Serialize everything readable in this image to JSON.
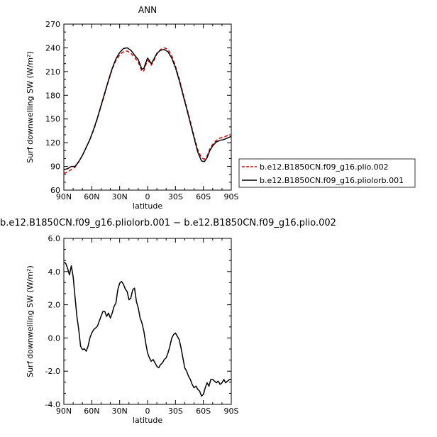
{
  "chart_data": [
    {
      "type": "line",
      "title": "ANN",
      "xlabel": "latitude",
      "ylabel": "Surf downwelling SW (W/m²)",
      "xlim": [
        90,
        -90
      ],
      "ylim": [
        60,
        270
      ],
      "x_ticks": [
        90,
        60,
        30,
        0,
        -30,
        -60,
        -90
      ],
      "x_tick_labels": [
        "90N",
        "60N",
        "30N",
        "0",
        "30S",
        "60S",
        "90S"
      ],
      "y_ticks": [
        60,
        90,
        120,
        150,
        180,
        210,
        240,
        270
      ],
      "y_tick_labels": [
        "60",
        "90",
        "120",
        "150",
        "180",
        "210",
        "240",
        "270"
      ],
      "legend_position": "right",
      "series": [
        {
          "name": "b.e12.B1850CN.f09_g16.plio.002",
          "color": "#dd0000",
          "dashed": true,
          "x": [
            90,
            86,
            82,
            78,
            74,
            70,
            66,
            62,
            58,
            54,
            50,
            46,
            42,
            38,
            34,
            30,
            26,
            22,
            18,
            14,
            10,
            6,
            4,
            2,
            0,
            -2,
            -4,
            -6,
            -10,
            -14,
            -18,
            -22,
            -26,
            -30,
            -34,
            -38,
            -42,
            -46,
            -50,
            -54,
            -58,
            -61,
            -64,
            -67,
            -70,
            -74,
            -78,
            -82,
            -86,
            -90
          ],
          "y": [
            81,
            83,
            86,
            89,
            96,
            104,
            114,
            124,
            136,
            150,
            166,
            182,
            198,
            213,
            224,
            231,
            235,
            236,
            233,
            228,
            222,
            210,
            211,
            218,
            224,
            222,
            218,
            222,
            232,
            238,
            240,
            238,
            230,
            217,
            201,
            183,
            165,
            147,
            128,
            111,
            101,
            99,
            103,
            112,
            118,
            123,
            126,
            127,
            129,
            130
          ]
        },
        {
          "name": "b.e12.B1850CN.f09_g16.pliolorb.001",
          "color": "#000000",
          "dashed": false,
          "x": [
            90,
            86,
            82,
            78,
            74,
            70,
            66,
            62,
            58,
            54,
            50,
            46,
            42,
            38,
            34,
            30,
            26,
            22,
            18,
            14,
            10,
            6,
            4,
            2,
            0,
            -2,
            -4,
            -6,
            -10,
            -14,
            -18,
            -22,
            -26,
            -30,
            -34,
            -38,
            -42,
            -46,
            -50,
            -54,
            -58,
            -61,
            -64,
            -67,
            -70,
            -74,
            -78,
            -82,
            -86,
            -90
          ],
          "y": [
            86,
            87,
            90,
            90,
            96,
            104,
            114,
            124,
            137,
            151,
            167,
            183,
            199,
            214,
            226,
            234,
            239,
            240,
            237,
            231,
            225,
            213,
            214,
            221,
            227,
            224,
            220,
            224,
            233,
            237,
            238,
            235,
            227,
            215,
            199,
            181,
            163,
            145,
            126,
            108,
            97,
            96,
            101,
            110,
            116,
            121,
            123,
            124,
            126,
            128
          ]
        }
      ]
    },
    {
      "type": "line",
      "title": "b.e12.B1850CN.f09_g16.pliolorb.001 − b.e12.B1850CN.f09_g16.plio.002",
      "xlabel": "latitude",
      "ylabel": "Surf downwelling SW (W/m²)",
      "xlim": [
        90,
        -90
      ],
      "ylim": [
        -4.0,
        6.0
      ],
      "x_ticks": [
        90,
        60,
        30,
        0,
        -30,
        -60,
        -90
      ],
      "x_tick_labels": [
        "90N",
        "60N",
        "30N",
        "0",
        "30S",
        "60S",
        "90S"
      ],
      "y_ticks": [
        -4.0,
        -2.0,
        0.0,
        2.0,
        4.0,
        6.0
      ],
      "y_tick_labels": [
        "-4.0",
        "-2.0",
        "0.0",
        "2.0",
        "4.0",
        "6.0"
      ],
      "series": [
        {
          "color": "#000000",
          "x": [
            90,
            88,
            86,
            84,
            82,
            80,
            78,
            76,
            74,
            72,
            70,
            68,
            66,
            64,
            62,
            60,
            58,
            56,
            54,
            52,
            50,
            48,
            46,
            44,
            42,
            40,
            38,
            36,
            34,
            32,
            30,
            28,
            26,
            24,
            22,
            20,
            18,
            16,
            14,
            12,
            10,
            8,
            6,
            4,
            2,
            0,
            -2,
            -4,
            -6,
            -8,
            -10,
            -12,
            -14,
            -16,
            -18,
            -20,
            -22,
            -24,
            -26,
            -28,
            -30,
            -32,
            -34,
            -36,
            -38,
            -40,
            -42,
            -44,
            -46,
            -48,
            -50,
            -52,
            -54,
            -56,
            -58,
            -60,
            -62,
            -64,
            -66,
            -68,
            -70,
            -72,
            -74,
            -76,
            -78,
            -80,
            -82,
            -84,
            -86,
            -88,
            -90
          ],
          "y": [
            4.55,
            4.5,
            4.2,
            3.8,
            4.35,
            3.7,
            2.5,
            1.3,
            0.5,
            -0.5,
            -0.7,
            -0.65,
            -0.8,
            -0.5,
            0.0,
            0.3,
            0.5,
            0.6,
            0.7,
            1.0,
            1.3,
            1.6,
            1.6,
            1.3,
            1.5,
            1.2,
            1.5,
            1.9,
            2.1,
            2.9,
            3.3,
            3.4,
            3.25,
            2.95,
            2.8,
            2.3,
            2.4,
            2.9,
            3.0,
            2.2,
            1.8,
            1.2,
            0.9,
            0.4,
            -0.3,
            -0.9,
            -1.2,
            -1.4,
            -1.3,
            -1.5,
            -1.7,
            -1.8,
            -1.6,
            -1.5,
            -1.3,
            -1.2,
            -0.9,
            -0.5,
            0.0,
            0.2,
            0.3,
            0.1,
            -0.1,
            -0.6,
            -1.2,
            -1.8,
            -2.0,
            -2.3,
            -2.5,
            -2.8,
            -3.0,
            -2.9,
            -3.1,
            -3.2,
            -3.5,
            -3.4,
            -3.0,
            -2.7,
            -2.9,
            -2.5,
            -2.5,
            -2.6,
            -2.7,
            -2.6,
            -2.8,
            -2.7,
            -2.5,
            -2.7,
            -2.6,
            -2.5,
            -2.5
          ]
        }
      ]
    }
  ]
}
